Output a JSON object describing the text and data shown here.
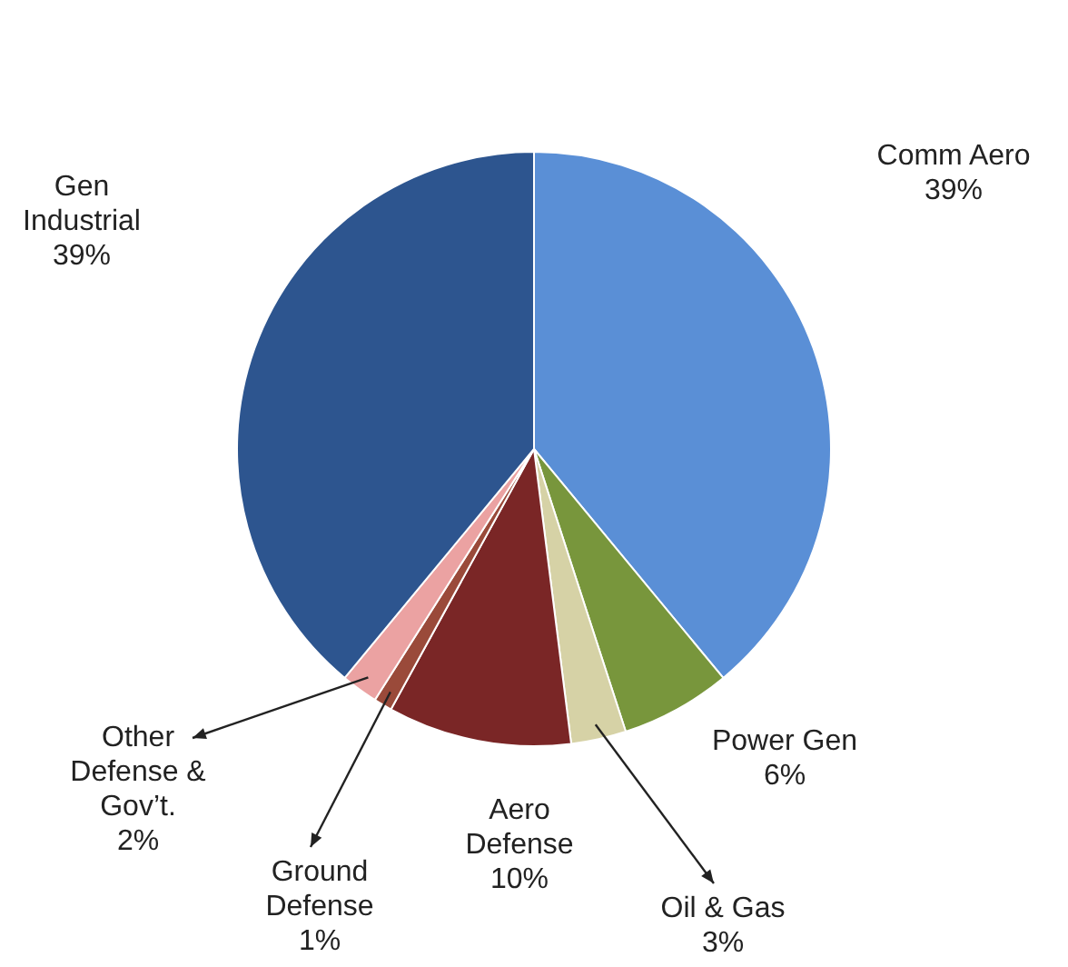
{
  "chart_data": {
    "type": "pie",
    "categories": [
      "Comm Aero",
      "Power Gen",
      "Oil & Gas",
      "Aero Defense",
      "Ground Defense",
      "Other Defense & Gov’t.",
      "Gen Industrial"
    ],
    "values": [
      39,
      6,
      3,
      10,
      1,
      2,
      39
    ],
    "value_labels": [
      "39%",
      "6%",
      "3%",
      "10%",
      "1%",
      "2%",
      "39%"
    ],
    "colors": [
      "#5a8fd6",
      "#78963c",
      "#d6d2a6",
      "#7a2626",
      "#9a4a3a",
      "#eba2a2",
      "#2d558f"
    ],
    "legend": false
  }
}
